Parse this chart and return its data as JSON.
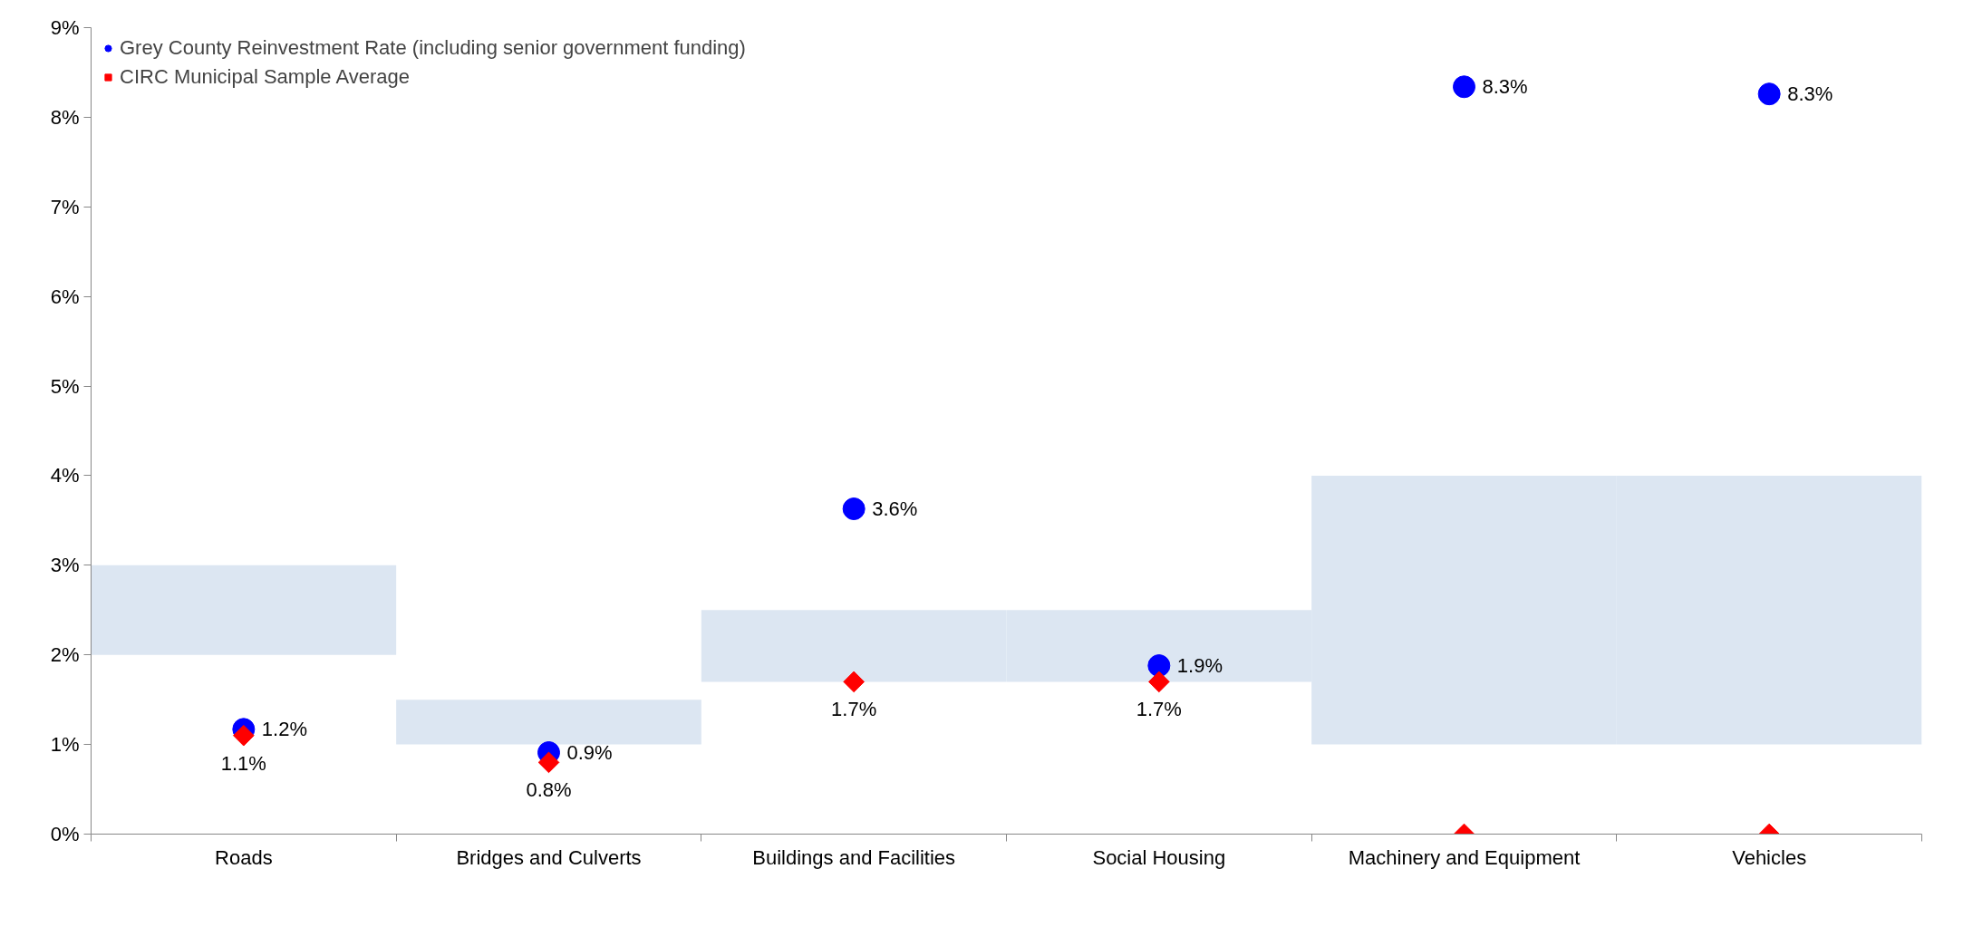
{
  "chart_data": {
    "type": "scatter",
    "categories": [
      "Roads",
      "Bridges and Culverts",
      "Buildings and Facilities",
      "Social Housing",
      "Machinery and Equipment",
      "Vehicles"
    ],
    "series": [
      {
        "type": "bar",
        "color": "#dce6f2",
        "base": [
          2,
          1,
          1.7,
          1.7,
          1,
          1
        ],
        "values": [
          1,
          0.5,
          0.8,
          0.8,
          3,
          3
        ]
      },
      {
        "name": "Grey County Reinvestment Rate (including senior government funding)",
        "color": "#0000ff",
        "marker": "circle",
        "values": [
          1.17,
          0.91,
          3.63,
          1.88,
          8.34,
          8.26
        ],
        "value_labels": [
          "1.2%",
          "0.9%",
          "3.6%",
          "1.9%",
          "8.3%",
          "8.3%"
        ]
      },
      {
        "name": "CIRC Municipal Sample Average",
        "color": "#ff0000",
        "marker": "diamond",
        "values": [
          1.1,
          0.8,
          1.7,
          1.7,
          0,
          0
        ],
        "value_labels": [
          "1.1%",
          "0.8%",
          "1.7%",
          "1.7%",
          null,
          null
        ]
      }
    ],
    "ylim": [
      0,
      9
    ],
    "yticks": [
      {
        "value": 0,
        "label": "0%"
      },
      {
        "value": 1,
        "label": "1%"
      },
      {
        "value": 2,
        "label": "2%"
      },
      {
        "value": 3,
        "label": "3%"
      },
      {
        "value": 4,
        "label": "4%"
      },
      {
        "value": 5,
        "label": "5%"
      },
      {
        "value": 6,
        "label": "6%"
      },
      {
        "value": 7,
        "label": "7%"
      },
      {
        "value": 8,
        "label": "8%"
      },
      {
        "value": 9,
        "label": "9%"
      }
    ],
    "grid": false,
    "legend": "top left"
  }
}
